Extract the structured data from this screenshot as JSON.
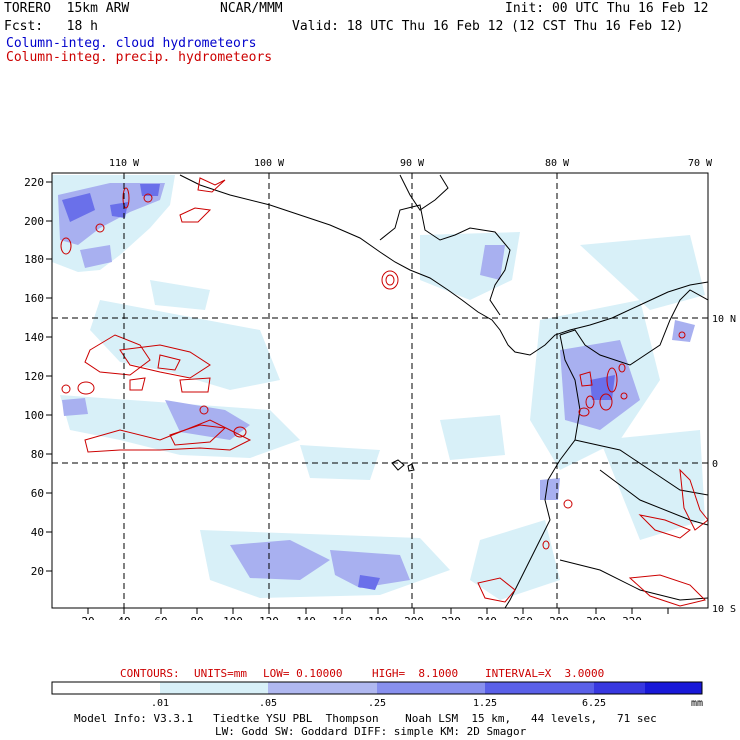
{
  "header": {
    "model": "TORERO  15km ARW",
    "org": "NCAR/MMM",
    "init": "Init: 00 UTC Thu 16 Feb 12",
    "fcst": "Fcst:   18 h",
    "valid": "Valid: 18 UTC Thu 16 Feb 12 (12 CST Thu 16 Feb 12)",
    "field1": "Column-integ. cloud hydrometeors",
    "field2": "Column-integ. precip. hydrometeors"
  },
  "map": {
    "lon_labels": [
      "110 W",
      "100 W",
      "90 W",
      "80 W",
      "70 W"
    ],
    "lat_labels": [
      "10 N",
      "0",
      "10 S"
    ],
    "y_ticks": [
      "220",
      "200",
      "180",
      "160",
      "140",
      "120",
      "100",
      "80",
      "60",
      "40",
      "20"
    ],
    "x_ticks": [
      "20",
      "40",
      "60",
      "80",
      "100",
      "120",
      "140",
      "160",
      "180",
      "200",
      "220",
      "240",
      "260",
      "280",
      "300",
      "320"
    ]
  },
  "contours": {
    "label": "CONTOURS:",
    "units": "UNITS=mm",
    "low": "LOW= 0.10000",
    "high": "HIGH=  8.1000",
    "interval": "INTERVAL=X  3.0000"
  },
  "colorbar": {
    "labels": [
      ".01",
      ".05",
      ".25",
      "1.25",
      "6.25"
    ],
    "unit": "mm",
    "colors": [
      "#ffffff",
      "#d8f0f8",
      "#b0b8f0",
      "#8890ee",
      "#5a60e8",
      "#3838e0",
      "#1818d8"
    ]
  },
  "footer": {
    "line1": "Model Info: V3.3.1   Tiedtke YSU PBL  Thompson    Noah LSM  15 km,   44 levels,   71 sec",
    "line2": "LW: Godd SW: Goddard DIFF: simple KM: 2D Smagor"
  }
}
